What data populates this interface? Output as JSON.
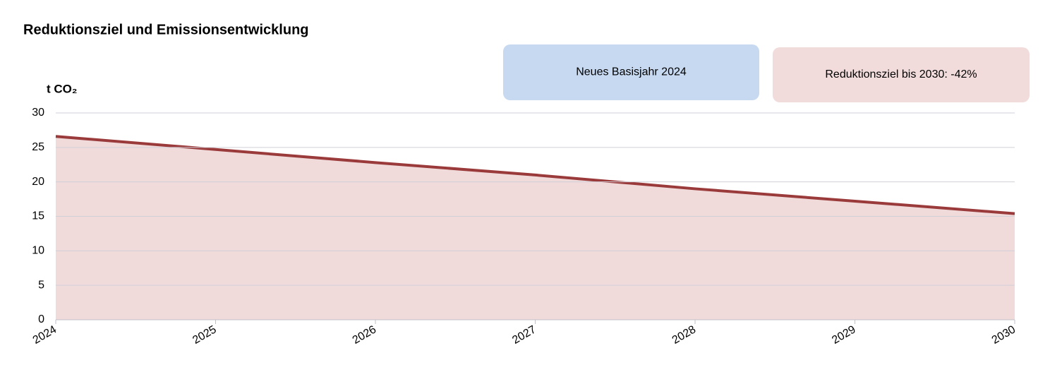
{
  "chart_data": {
    "type": "area",
    "title": "Reduktionsziel und Emissionsentwicklung",
    "y_label": "t CO₂",
    "x": [
      2024,
      2025,
      2026,
      2027,
      2028,
      2029,
      2030
    ],
    "values": [
      26.6,
      24.7,
      22.8,
      21.0,
      19.0,
      17.2,
      15.4
    ],
    "line_color": "#9b3a3a",
    "fill_color": "#f0dada",
    "xlim": [
      2024,
      2030
    ],
    "xticks": [
      2024,
      2025,
      2026,
      2027,
      2028,
      2029,
      2030
    ],
    "ylim": [
      0,
      30
    ],
    "yticks": [
      0,
      5,
      10,
      15,
      20,
      25,
      30
    ],
    "grid": true,
    "annotations": [
      {
        "text": "Neues Basisjahr 2024",
        "color": "#c6d9f1"
      },
      {
        "text": "Reduktionsziel bis 2030: -42%",
        "color": "#f2dcdb"
      }
    ]
  }
}
